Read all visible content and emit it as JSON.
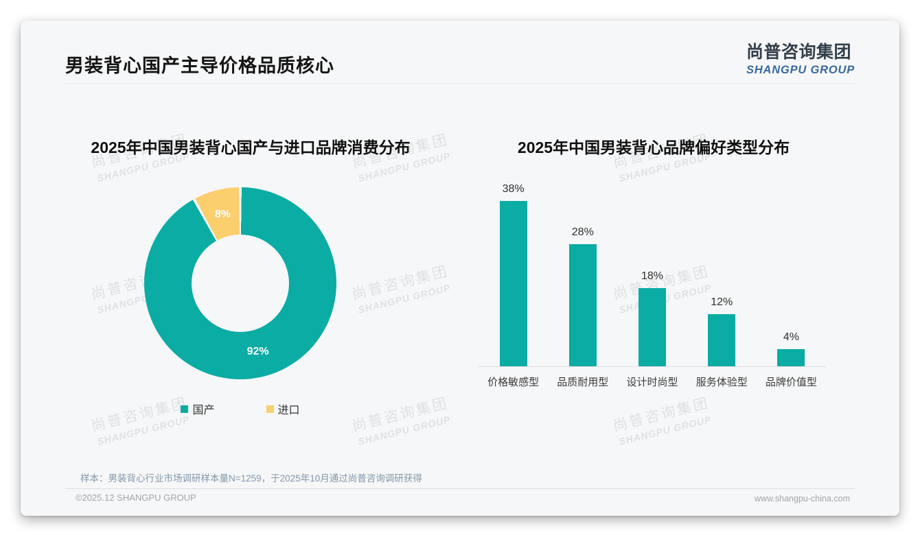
{
  "header": {
    "title": "男装背心国产主导价格品质核心",
    "logo_cn": "尚普咨询集团",
    "logo_en": "SHANGPU GROUP"
  },
  "watermark": {
    "line1": "尚普咨询集团",
    "line2": "SHANGPU GROUP"
  },
  "colors": {
    "primary_teal": "#0AACA4",
    "accent_yellow": "#FBCE6E",
    "card_background": "#F6F7F8"
  },
  "chart_data": [
    {
      "type": "pie",
      "subtype": "donut",
      "title": "2025年中国男装背心国产与进口品牌消费分布",
      "unit": "%",
      "series": [
        {
          "label": "国产",
          "value": 92,
          "color": "#0AACA4"
        },
        {
          "label": "进口",
          "value": 8,
          "color": "#FBCE6E"
        }
      ],
      "legend_position": "bottom",
      "data_labels": "inside white"
    },
    {
      "type": "bar",
      "title": "2025年中国男装背心品牌偏好类型分布",
      "unit": "%",
      "categories": [
        "价格敏感型",
        "品质耐用型",
        "设计时尚型",
        "服务体验型",
        "品牌价值型"
      ],
      "values": [
        38,
        28,
        18,
        12,
        4
      ],
      "bar_color": "#0AACA4",
      "ylim": [
        0,
        42
      ],
      "grid": false,
      "axis_line": "bottom only",
      "data_labels": "above bars"
    }
  ],
  "footnote": "样本：男装背心行业市场调研样本量N=1259，于2025年10月通过尚普咨询调研获得",
  "footer": {
    "copyright": "©2025.12 SHANGPU GROUP",
    "website": "www.shangpu-china.com"
  }
}
